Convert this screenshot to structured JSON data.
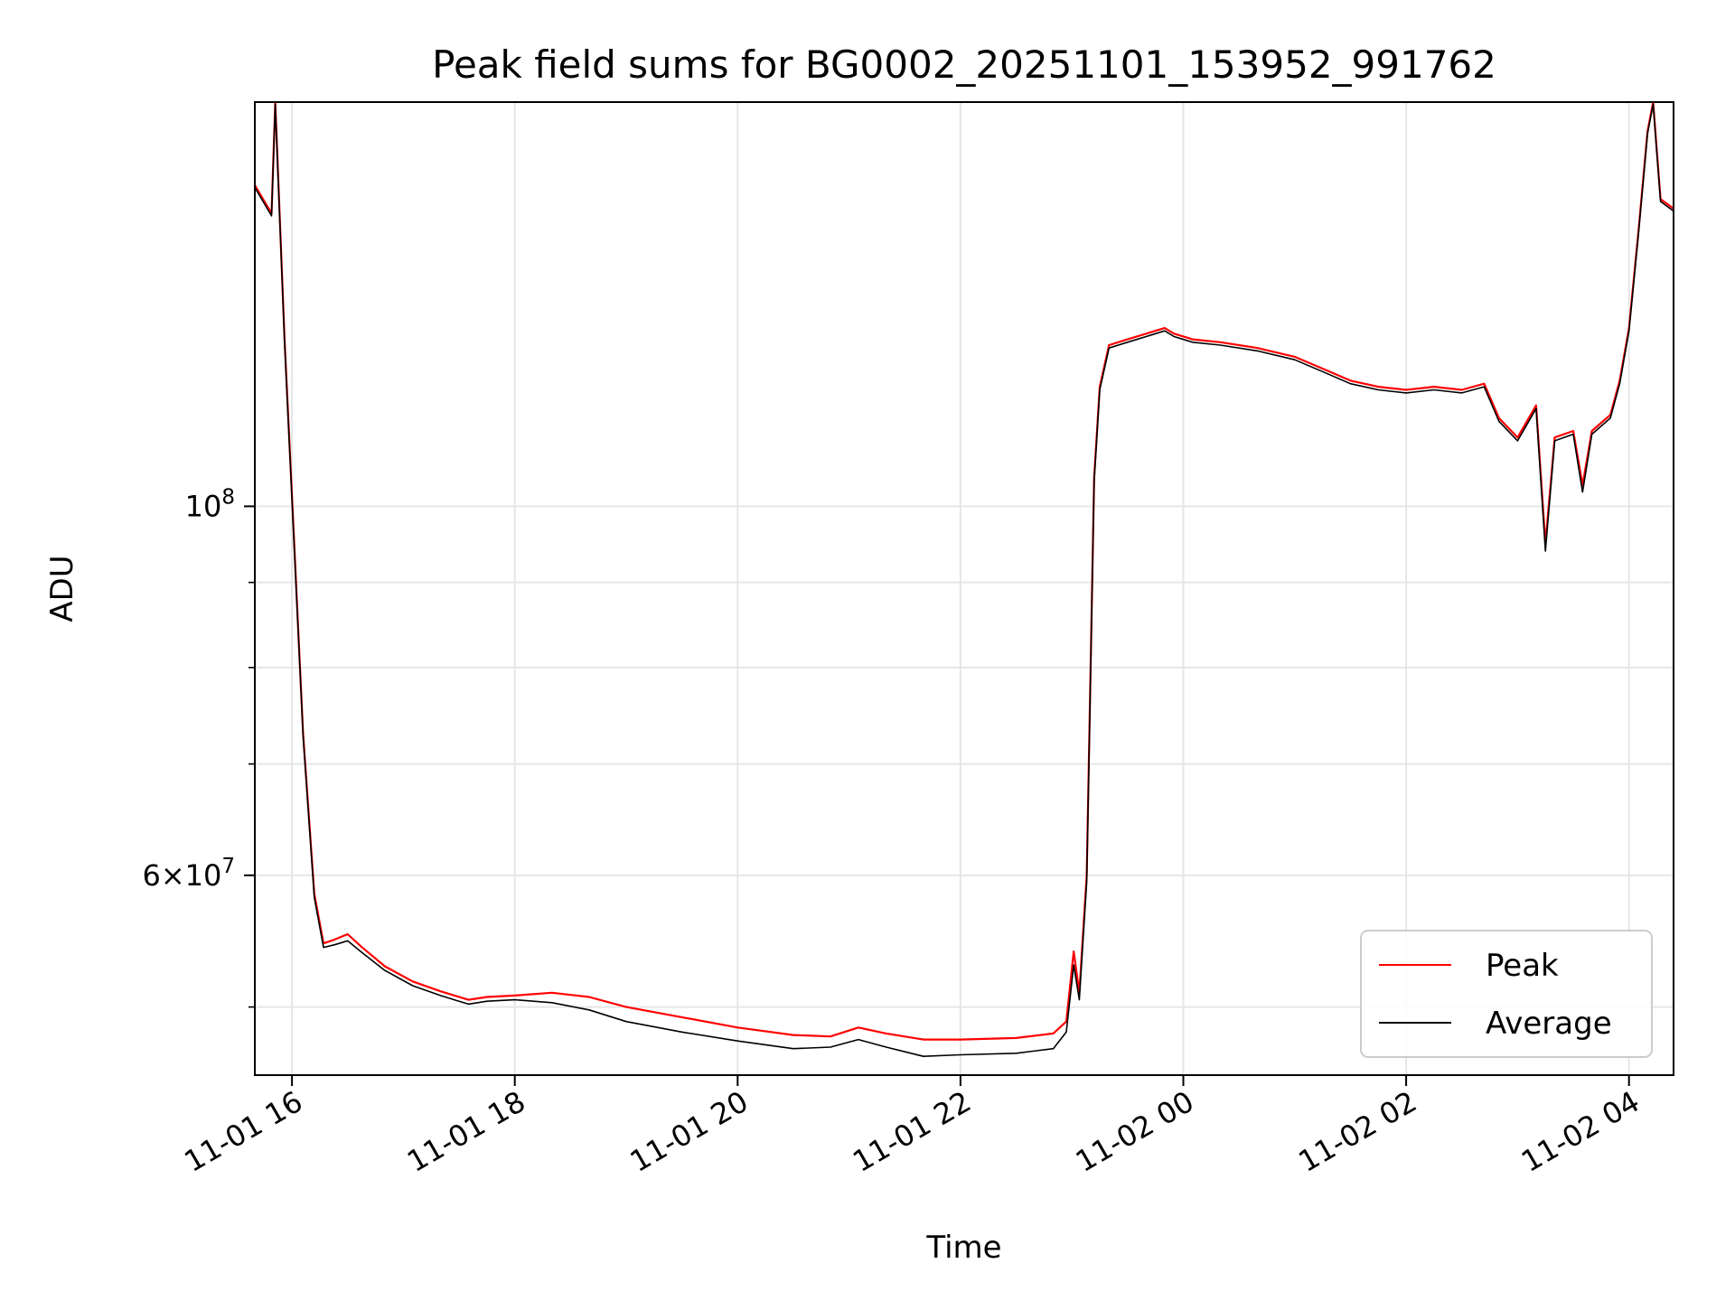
{
  "chart_data": {
    "type": "line",
    "title": "Peak field sums for BG0002_20251101_153952_991762",
    "xlabel": "Time",
    "ylabel": "ADU",
    "y_scale": "log",
    "ylim": [
      45500000,
      175000000
    ],
    "xlim": [
      "2025-11-01 15:40",
      "2025-11-02 04:24"
    ],
    "x_ticks": [
      {
        "value": "2025-11-01 16:00",
        "label": "11-01 16"
      },
      {
        "value": "2025-11-01 18:00",
        "label": "11-01 18"
      },
      {
        "value": "2025-11-01 20:00",
        "label": "11-01 20"
      },
      {
        "value": "2025-11-01 22:00",
        "label": "11-01 22"
      },
      {
        "value": "2025-11-02 00:00",
        "label": "11-02 00"
      },
      {
        "value": "2025-11-02 02:00",
        "label": "11-02 02"
      },
      {
        "value": "2025-11-02 04:00",
        "label": "11-02 04"
      }
    ],
    "y_major_ticks": [
      {
        "value": 60000000,
        "base": "6",
        "exp": "7",
        "style": "mantissa"
      },
      {
        "value": 100000000,
        "base": "10",
        "exp": "8",
        "style": "power"
      }
    ],
    "y_minor_ticks": [
      50000000,
      70000000,
      80000000,
      90000000
    ],
    "grid": true,
    "legend": {
      "position": "lower-right"
    },
    "series": [
      {
        "name": "Peak",
        "color": "#ff0000",
        "x": [
          "2025-11-01 15:40",
          "2025-11-01 15:49",
          "2025-11-01 15:51",
          "2025-11-01 15:56",
          "2025-11-01 16:01",
          "2025-11-01 16:06",
          "2025-11-01 16:12",
          "2025-11-01 16:17",
          "2025-11-01 16:23",
          "2025-11-01 16:30",
          "2025-11-01 16:37",
          "2025-11-01 16:50",
          "2025-11-01 17:05",
          "2025-11-01 17:20",
          "2025-11-01 17:35",
          "2025-11-01 17:45",
          "2025-11-01 18:00",
          "2025-11-01 18:20",
          "2025-11-01 18:40",
          "2025-11-01 19:00",
          "2025-11-01 19:30",
          "2025-11-01 20:00",
          "2025-11-01 20:30",
          "2025-11-01 20:50",
          "2025-11-01 21:05",
          "2025-11-01 21:20",
          "2025-11-01 21:40",
          "2025-11-01 22:00",
          "2025-11-01 22:30",
          "2025-11-01 22:50",
          "2025-11-01 22:57",
          "2025-11-01 23:01",
          "2025-11-01 23:04",
          "2025-11-01 23:08",
          "2025-11-01 23:12",
          "2025-11-01 23:15",
          "2025-11-01 23:20",
          "2025-11-01 23:30",
          "2025-11-01 23:40",
          "2025-11-01 23:50",
          "2025-11-01 23:55",
          "2025-11-02 00:05",
          "2025-11-02 00:20",
          "2025-11-02 00:40",
          "2025-11-02 01:00",
          "2025-11-02 01:15",
          "2025-11-02 01:30",
          "2025-11-02 01:45",
          "2025-11-02 02:00",
          "2025-11-02 02:15",
          "2025-11-02 02:30",
          "2025-11-02 02:42",
          "2025-11-02 02:50",
          "2025-11-02 03:00",
          "2025-11-02 03:10",
          "2025-11-02 03:15",
          "2025-11-02 03:20",
          "2025-11-02 03:30",
          "2025-11-02 03:35",
          "2025-11-02 03:40",
          "2025-11-02 03:50",
          "2025-11-02 03:55",
          "2025-11-02 04:00",
          "2025-11-02 04:05",
          "2025-11-02 04:10",
          "2025-11-02 04:13",
          "2025-11-02 04:17",
          "2025-11-02 04:24"
        ],
        "values": [
          156000000,
          150000000,
          175000000,
          126000000,
          96000000,
          73000000,
          58500000,
          54600000,
          54900000,
          55300000,
          54400000,
          52900000,
          51800000,
          51100000,
          50500000,
          50700000,
          50800000,
          51000000,
          50700000,
          50000000,
          49300000,
          48600000,
          48100000,
          48000000,
          48600000,
          48200000,
          47800000,
          47800000,
          47900000,
          48200000,
          49000000,
          54000000,
          51000000,
          60000000,
          104000000,
          118000000,
          125000000,
          126000000,
          127000000,
          128000000,
          127000000,
          126000000,
          125500000,
          124500000,
          123000000,
          121000000,
          119000000,
          118000000,
          117500000,
          118000000,
          117500000,
          118500000,
          113000000,
          110000000,
          115000000,
          95000000,
          110000000,
          111000000,
          103000000,
          111000000,
          113500000,
          119000000,
          128000000,
          146000000,
          168000000,
          175000000,
          153000000,
          151000000
        ]
      },
      {
        "name": "Average",
        "color": "#000000",
        "x": [
          "2025-11-01 15:40",
          "2025-11-01 15:49",
          "2025-11-01 15:51",
          "2025-11-01 15:56",
          "2025-11-01 16:01",
          "2025-11-01 16:06",
          "2025-11-01 16:12",
          "2025-11-01 16:17",
          "2025-11-01 16:23",
          "2025-11-01 16:30",
          "2025-11-01 16:37",
          "2025-11-01 16:50",
          "2025-11-01 17:05",
          "2025-11-01 17:20",
          "2025-11-01 17:35",
          "2025-11-01 17:45",
          "2025-11-01 18:00",
          "2025-11-01 18:20",
          "2025-11-01 18:40",
          "2025-11-01 19:00",
          "2025-11-01 19:30",
          "2025-11-01 20:00",
          "2025-11-01 20:30",
          "2025-11-01 20:50",
          "2025-11-01 21:05",
          "2025-11-01 21:20",
          "2025-11-01 21:40",
          "2025-11-01 22:00",
          "2025-11-01 22:30",
          "2025-11-01 22:50",
          "2025-11-01 22:57",
          "2025-11-01 23:01",
          "2025-11-01 23:04",
          "2025-11-01 23:08",
          "2025-11-01 23:12",
          "2025-11-01 23:15",
          "2025-11-01 23:20",
          "2025-11-01 23:30",
          "2025-11-01 23:40",
          "2025-11-01 23:50",
          "2025-11-01 23:55",
          "2025-11-02 00:05",
          "2025-11-02 00:20",
          "2025-11-02 00:40",
          "2025-11-02 01:00",
          "2025-11-02 01:15",
          "2025-11-02 01:30",
          "2025-11-02 01:45",
          "2025-11-02 02:00",
          "2025-11-02 02:15",
          "2025-11-02 02:30",
          "2025-11-02 02:42",
          "2025-11-02 02:50",
          "2025-11-02 03:00",
          "2025-11-02 03:10",
          "2025-11-02 03:15",
          "2025-11-02 03:20",
          "2025-11-02 03:30",
          "2025-11-02 03:35",
          "2025-11-02 03:40",
          "2025-11-02 03:50",
          "2025-11-02 03:55",
          "2025-11-02 04:00",
          "2025-11-02 04:05",
          "2025-11-02 04:10",
          "2025-11-02 04:13",
          "2025-11-02 04:17",
          "2025-11-02 04:24"
        ],
        "values": [
          155500000,
          149500000,
          174500000,
          125500000,
          95500000,
          72800000,
          58200000,
          54300000,
          54500000,
          54800000,
          54000000,
          52600000,
          51500000,
          50800000,
          50200000,
          50400000,
          50500000,
          50300000,
          49800000,
          49000000,
          48300000,
          47700000,
          47200000,
          47300000,
          47800000,
          47300000,
          46700000,
          46800000,
          46900000,
          47200000,
          48300000,
          53000000,
          50500000,
          59500000,
          103500000,
          117500000,
          124500000,
          125500000,
          126500000,
          127500000,
          126500000,
          125500000,
          125000000,
          124000000,
          122500000,
          120500000,
          118500000,
          117500000,
          117000000,
          117500000,
          117000000,
          118000000,
          112500000,
          109500000,
          114500000,
          94000000,
          109500000,
          110500000,
          102000000,
          110500000,
          113000000,
          118500000,
          127500000,
          145500000,
          167500000,
          174500000,
          152500000,
          150500000
        ]
      }
    ]
  }
}
